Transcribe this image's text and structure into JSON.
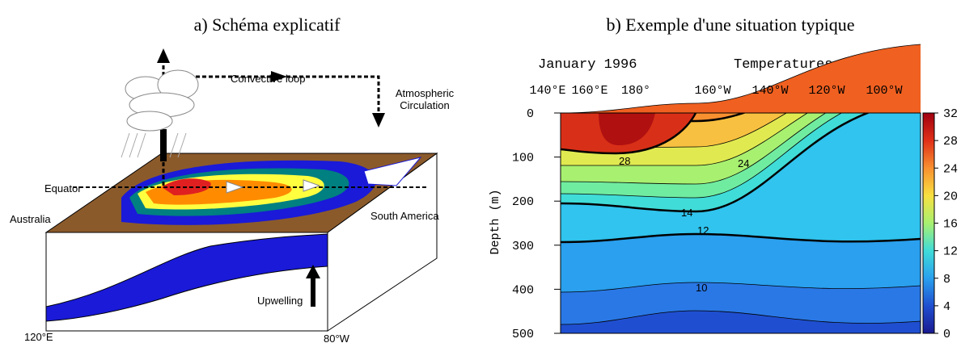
{
  "panel_a": {
    "title": "a) Schéma explicatif",
    "convective_loop": "Convective loop",
    "atmospheric_circulation": [
      "Atmospheric",
      "Circulation"
    ],
    "equator": "Equator",
    "australia": "Australia",
    "south_america": "South America",
    "upwelling": "Upwelling",
    "axis_left": "120°E",
    "axis_right": "80°W"
  },
  "panel_b": {
    "title": "b) Exemple d'une situation typique",
    "date": "January 1996",
    "variable": "Temperatures (°C)",
    "y_label": "Depth (m)",
    "x_labels": [
      "140°E",
      "160°E",
      "180°",
      "160°W",
      "140°W",
      "120°W",
      "100°W"
    ],
    "y_ticks": [
      0,
      100,
      200,
      300,
      400,
      500
    ],
    "colorbar_ticks": [
      0,
      4,
      8,
      12,
      16,
      20,
      24,
      28,
      32
    ],
    "contour_labels": [
      28,
      24,
      14,
      12,
      10
    ]
  }
}
